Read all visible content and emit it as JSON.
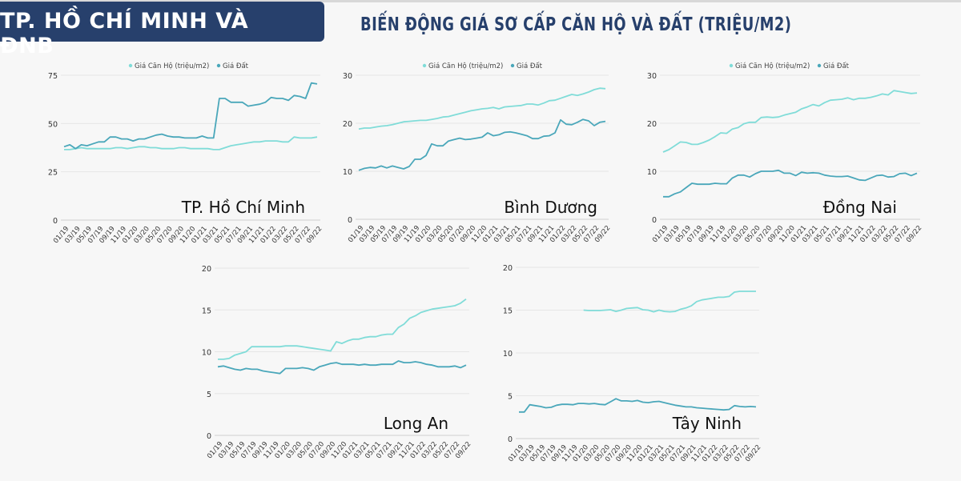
{
  "header": {
    "badge": "TP. HỒ CHÍ MINH VÀ ĐNB",
    "title": "BIẾN ĐỘNG GIÁ SƠ CẤP CĂN HỘ VÀ ĐẤT (TRIỆU/M2)"
  },
  "colors": {
    "header_bg": "#27406c",
    "can_ho": "#80dcd8",
    "dat": "#4aa7ba"
  },
  "chart_data": [
    {
      "type": "line",
      "region": "TP. Hồ Chí Minh",
      "ylim": [
        0,
        75
      ],
      "yticks": [
        0,
        25,
        50,
        75
      ],
      "legend": [
        "Giá Căn Hộ (triệu/m2)",
        "Giá Đất"
      ],
      "legend_position": "top",
      "xticks": [
        "01/19",
        "03/19",
        "05/19",
        "07/19",
        "09/19",
        "11/19",
        "01/20",
        "03/20",
        "05/20",
        "07/20",
        "09/20",
        "11/20",
        "01/21",
        "03/21",
        "05/21",
        "07/21",
        "09/21",
        "11/21",
        "01/22",
        "03/22",
        "05/22",
        "07/22",
        "09/22"
      ],
      "series": [
        {
          "name": "Giá Căn Hộ (triệu/m2)",
          "values": [
            36.5,
            36.5,
            37,
            37.5,
            37,
            37,
            37,
            37,
            37,
            37.5,
            37.5,
            37,
            37.5,
            38,
            38,
            37.5,
            37.5,
            37,
            37,
            37,
            37.5,
            37.5,
            37,
            37,
            37,
            37,
            36.5,
            36.5,
            37.5,
            38.5,
            39,
            39.5,
            40,
            40.5,
            40.5,
            41,
            41,
            41,
            40.5,
            40.5,
            43,
            42.5,
            42.5,
            42.5,
            43
          ]
        },
        {
          "name": "Giá Đất",
          "values": [
            38,
            39,
            37,
            39,
            38.5,
            39.5,
            40.5,
            40.5,
            43,
            43,
            42,
            42,
            41,
            42,
            42,
            43,
            44,
            44.5,
            43.5,
            43,
            43,
            42.5,
            42.5,
            42.5,
            43.5,
            42.5,
            42.5,
            63,
            63,
            61,
            61,
            61,
            59,
            59.5,
            60,
            61,
            63.5,
            63,
            63,
            62,
            64.5,
            64,
            63,
            71,
            70.5
          ]
        }
      ]
    },
    {
      "type": "line",
      "region": "Bình Dương",
      "ylim": [
        0,
        30
      ],
      "yticks": [
        0,
        10,
        20,
        30
      ],
      "legend": [
        "Giá Căn Hộ (triệu/m2)",
        "Giá Đất"
      ],
      "legend_position": "top",
      "xticks": [
        "01/19",
        "03/19",
        "05/19",
        "07/19",
        "09/19",
        "11/19",
        "01/20",
        "03/20",
        "05/20",
        "07/20",
        "09/20",
        "11/20",
        "01/21",
        "03/21",
        "05/21",
        "07/21",
        "09/21",
        "11/21",
        "01/22",
        "03/22",
        "05/22",
        "07/22",
        "09/22"
      ],
      "series": [
        {
          "name": "Giá Căn Hộ (triệu/m2)",
          "values": [
            18.8,
            19,
            19,
            19.2,
            19.4,
            19.5,
            19.7,
            20,
            20.3,
            20.4,
            20.5,
            20.6,
            20.6,
            20.8,
            21,
            21.3,
            21.4,
            21.7,
            22,
            22.3,
            22.6,
            22.8,
            23,
            23.1,
            23.3,
            23,
            23.4,
            23.5,
            23.6,
            23.7,
            24,
            24,
            23.8,
            24.2,
            24.7,
            24.8,
            25.2,
            25.6,
            26,
            25.8,
            26.1,
            26.5,
            27,
            27.3,
            27.2
          ]
        },
        {
          "name": "Giá Đất",
          "values": [
            10.2,
            10.6,
            10.8,
            10.7,
            11.1,
            10.7,
            11.1,
            10.8,
            10.5,
            11,
            12.5,
            12.5,
            13.3,
            15.7,
            15.3,
            15.3,
            16.3,
            16.6,
            16.9,
            16.6,
            16.7,
            16.9,
            17.1,
            18,
            17.4,
            17.6,
            18.1,
            18.2,
            18,
            17.7,
            17.4,
            16.8,
            16.8,
            17.3,
            17.4,
            18,
            20.7,
            19.8,
            19.7,
            20.2,
            20.8,
            20.5,
            19.5,
            20.2,
            20.4
          ]
        }
      ]
    },
    {
      "type": "line",
      "region": "Đồng Nai",
      "ylim": [
        0,
        30
      ],
      "yticks": [
        0,
        10,
        20,
        30
      ],
      "legend": [
        "Giá Căn Hộ (triệu/m2)",
        "Giá Đất"
      ],
      "legend_position": "top",
      "xticks": [
        "01/19",
        "03/19",
        "05/19",
        "07/19",
        "09/19",
        "11/19",
        "01/20",
        "03/20",
        "05/20",
        "07/20",
        "09/20",
        "11/20",
        "01/21",
        "03/21",
        "05/21",
        "07/21",
        "09/21",
        "11/21",
        "01/22",
        "03/22",
        "05/22",
        "07/22",
        "09/22"
      ],
      "series": [
        {
          "name": "Giá Căn Hộ (triệu/m2)",
          "values": [
            14,
            14.5,
            15.3,
            16.1,
            16,
            15.6,
            15.6,
            16,
            16.5,
            17.2,
            18,
            17.9,
            18.8,
            19.1,
            19.9,
            20.2,
            20.2,
            21.2,
            21.3,
            21.2,
            21.3,
            21.7,
            22,
            22.3,
            23,
            23.4,
            23.9,
            23.6,
            24.3,
            24.8,
            24.9,
            25,
            25.3,
            24.9,
            25.2,
            25.2,
            25.4,
            25.7,
            26.1,
            25.9,
            26.8,
            26.6,
            26.4,
            26.2,
            26.3
          ]
        },
        {
          "name": "Giá Đất",
          "values": [
            4.7,
            4.7,
            5.3,
            5.7,
            6.6,
            7.5,
            7.3,
            7.3,
            7.3,
            7.5,
            7.4,
            7.4,
            8.6,
            9.2,
            9.2,
            8.8,
            9.5,
            10,
            10,
            10,
            10.2,
            9.6,
            9.6,
            9.1,
            9.8,
            9.6,
            9.7,
            9.6,
            9.2,
            9,
            8.9,
            8.9,
            9,
            8.6,
            8.2,
            8.1,
            8.6,
            9.1,
            9.2,
            8.8,
            8.9,
            9.5,
            9.6,
            9.1,
            9.6
          ]
        }
      ]
    },
    {
      "type": "line",
      "region": "Long An",
      "ylim": [
        0,
        20
      ],
      "yticks": [
        0,
        5,
        10,
        15,
        20
      ],
      "xticks": [
        "01/19",
        "03/19",
        "05/19",
        "07/19",
        "09/19",
        "11/19",
        "01/20",
        "03/20",
        "05/20",
        "07/20",
        "09/20",
        "11/20",
        "01/21",
        "03/21",
        "05/21",
        "07/21",
        "09/21",
        "11/21",
        "01/22",
        "03/22",
        "05/22",
        "07/22",
        "09/22"
      ],
      "series": [
        {
          "values": [
            9.1,
            9.1,
            9.2,
            9.6,
            9.8,
            10,
            10.6,
            10.6,
            10.6,
            10.6,
            10.6,
            10.6,
            10.7,
            10.7,
            10.7,
            10.6,
            10.5,
            10.4,
            10.3,
            10.2,
            10.1,
            11.2,
            11,
            11.3,
            11.5,
            11.5,
            11.7,
            11.8,
            11.8,
            12,
            12.1,
            12.1,
            12.9,
            13.3,
            14,
            14.3,
            14.7,
            14.9,
            15.1,
            15.2,
            15.3,
            15.4,
            15.5,
            15.8,
            16.3
          ]
        },
        {
          "values": [
            8.2,
            8.3,
            8.1,
            7.9,
            7.8,
            8,
            7.9,
            7.9,
            7.7,
            7.6,
            7.5,
            7.4,
            8,
            8,
            8,
            8.1,
            8,
            7.8,
            8.2,
            8.4,
            8.6,
            8.7,
            8.5,
            8.5,
            8.5,
            8.4,
            8.5,
            8.4,
            8.4,
            8.5,
            8.5,
            8.5,
            8.9,
            8.7,
            8.7,
            8.8,
            8.7,
            8.5,
            8.4,
            8.2,
            8.2,
            8.2,
            8.3,
            8.1,
            8.4
          ]
        }
      ]
    },
    {
      "type": "line",
      "region": "Tây Ninh",
      "ylim": [
        0,
        20
      ],
      "yticks": [
        0,
        5,
        10,
        15,
        20
      ],
      "xticks": [
        "01/19",
        "03/19",
        "05/19",
        "07/19",
        "09/19",
        "11/19",
        "01/20",
        "03/20",
        "05/20",
        "07/20",
        "09/20",
        "11/20",
        "01/21",
        "03/21",
        "05/21",
        "07/21",
        "09/21",
        "11/21",
        "01/22",
        "03/22",
        "05/22",
        "07/22",
        "09/22"
      ],
      "series": [
        {
          "values": [
            null,
            null,
            null,
            null,
            null,
            null,
            null,
            null,
            null,
            null,
            null,
            null,
            15,
            14.95,
            14.95,
            14.95,
            15,
            15.05,
            14.85,
            15,
            15.2,
            15.25,
            15.3,
            15.05,
            15,
            14.8,
            15,
            14.85,
            14.8,
            14.85,
            15.1,
            15.25,
            15.5,
            16,
            16.2,
            16.3,
            16.4,
            16.5,
            16.5,
            16.6,
            17.1,
            17.2,
            17.2,
            17.2,
            17.2
          ]
        },
        {
          "values": [
            3.1,
            3.1,
            3.95,
            3.85,
            3.75,
            3.6,
            3.65,
            3.9,
            4,
            4,
            3.95,
            4.1,
            4.1,
            4.05,
            4.1,
            4,
            3.95,
            4.3,
            4.65,
            4.4,
            4.4,
            4.35,
            4.45,
            4.25,
            4.2,
            4.3,
            4.35,
            4.2,
            4.05,
            3.9,
            3.8,
            3.7,
            3.7,
            3.6,
            3.55,
            3.5,
            3.45,
            3.4,
            3.35,
            3.4,
            3.85,
            3.75,
            3.7,
            3.75,
            3.7
          ]
        }
      ]
    }
  ]
}
